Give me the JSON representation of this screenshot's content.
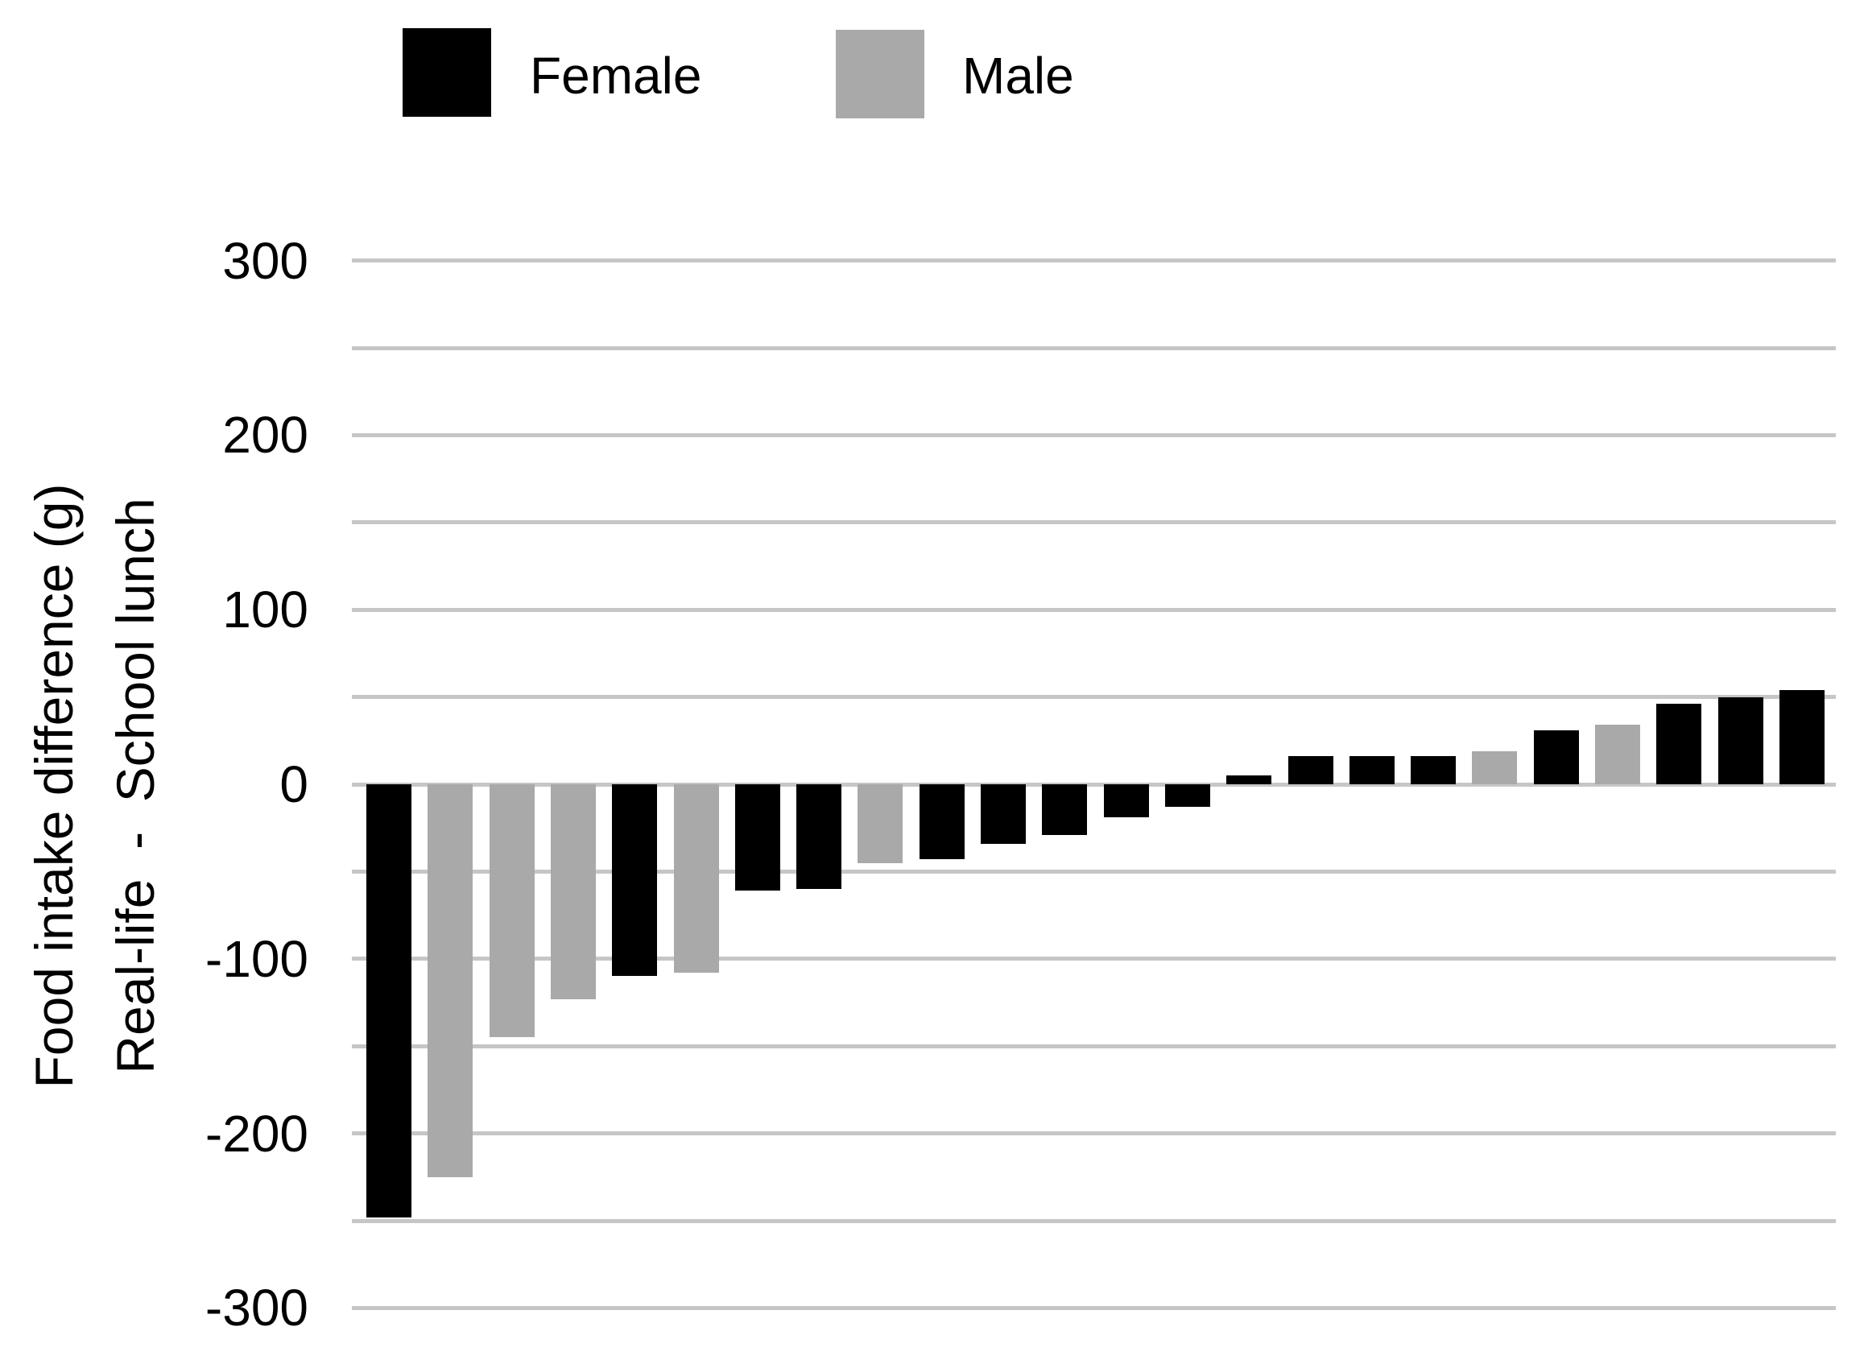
{
  "legend": {
    "items": [
      {
        "label": "Female",
        "color": "#000000"
      },
      {
        "label": "Male",
        "color": "#a9a9a9"
      }
    ]
  },
  "y_axis": {
    "title_line1": "Food intake difference (g)",
    "title_line2": "Real-life  -  School lunch",
    "tick_labels": [
      "300",
      "200",
      "100",
      "0",
      "-100",
      "-200",
      "-300"
    ]
  },
  "colors": {
    "female_bar": "#000000",
    "male_bar": "#a9a9a9",
    "gridline": "#c6c6c6",
    "background": "#ffffff",
    "text": "#000000"
  },
  "chart_data": {
    "type": "bar",
    "title": "",
    "xlabel": "",
    "ylabel": "Food intake difference (g) / Real-life - School lunch",
    "ylim": [
      -300,
      300
    ],
    "gridline_step": 50,
    "grid": true,
    "legend_position": "top-left",
    "legend_entries": [
      "Female",
      "Male"
    ],
    "series_colors": {
      "Female": "#000000",
      "Male": "#a9a9a9"
    },
    "bars_sorted_ascending": true,
    "bars": [
      {
        "series": "Female",
        "value": -248
      },
      {
        "series": "Male",
        "value": -225
      },
      {
        "series": "Male",
        "value": -145
      },
      {
        "series": "Male",
        "value": -123
      },
      {
        "series": "Female",
        "value": -110
      },
      {
        "series": "Male",
        "value": -108
      },
      {
        "series": "Female",
        "value": -61
      },
      {
        "series": "Female",
        "value": -60
      },
      {
        "series": "Male",
        "value": -45
      },
      {
        "series": "Female",
        "value": -43
      },
      {
        "series": "Female",
        "value": -34
      },
      {
        "series": "Female",
        "value": -29
      },
      {
        "series": "Female",
        "value": -19
      },
      {
        "series": "Female",
        "value": -13
      },
      {
        "series": "Female",
        "value": 5
      },
      {
        "series": "Female",
        "value": 16
      },
      {
        "series": "Female",
        "value": 16
      },
      {
        "series": "Female",
        "value": 16
      },
      {
        "series": "Male",
        "value": 19
      },
      {
        "series": "Female",
        "value": 31
      },
      {
        "series": "Male",
        "value": 34
      },
      {
        "series": "Female",
        "value": 46
      },
      {
        "series": "Female",
        "value": 50
      },
      {
        "series": "Female",
        "value": 54
      }
    ]
  }
}
